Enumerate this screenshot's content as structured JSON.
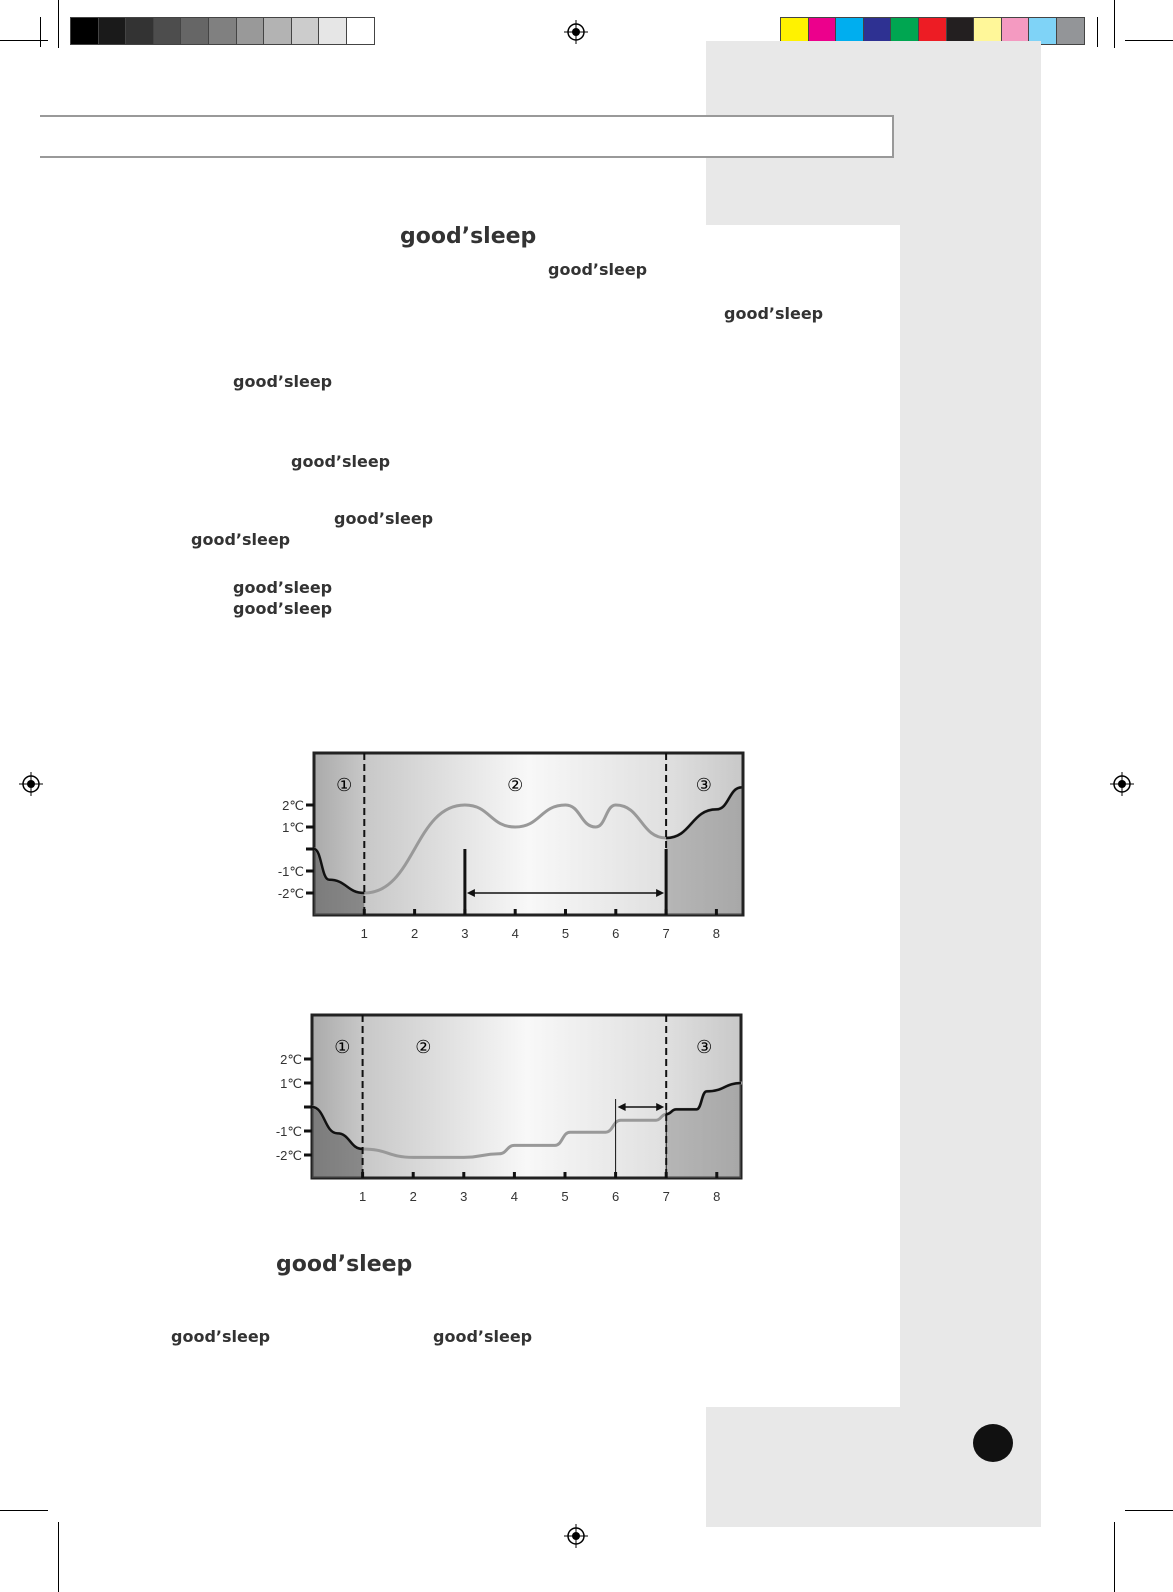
{
  "colors": {
    "grayscale": [
      "#000000",
      "#1a1a1a",
      "#333333",
      "#4d4d4d",
      "#666666",
      "#808080",
      "#999999",
      "#b3b3b3",
      "#cccccc",
      "#e6e6e6",
      "#ffffff"
    ],
    "process": [
      "#fff200",
      "#ec008c",
      "#00aeef",
      "#2e3192",
      "#00a651",
      "#ed1c24",
      "#231f20",
      "#fff799",
      "#f49ac1",
      "#7fd3f7",
      "#939598"
    ],
    "sidebar": "#e8e8e8"
  },
  "text": {
    "heading1": "good’sleep",
    "heading2": "good’sleep",
    "inline": [
      "good’sleep",
      "good’sleep",
      "good’sleep",
      "good’sleep",
      "good’sleep",
      "good’sleep",
      "good’sleep",
      "good’sleep",
      "good’sleep",
      "good’sleep"
    ]
  },
  "chart_data": [
    {
      "type": "line",
      "x_ticks": [
        "1",
        "2",
        "3",
        "4",
        "5",
        "6",
        "7",
        "8"
      ],
      "y_ticks": [
        "2℃",
        "1℃",
        "-1℃",
        "-2℃"
      ],
      "zones": [
        "①",
        "②",
        "③"
      ],
      "zone_bounds": [
        1,
        7
      ],
      "range_arrow": [
        3,
        7
      ],
      "xlim": [
        0,
        8.5
      ],
      "ylim": [
        -3,
        3.5
      ],
      "points": [
        [
          0,
          0
        ],
        [
          0.3,
          -1.4
        ],
        [
          1,
          -2
        ],
        [
          3,
          2
        ],
        [
          4,
          1
        ],
        [
          5,
          2
        ],
        [
          5.6,
          1
        ],
        [
          6,
          2
        ],
        [
          7,
          0.5
        ],
        [
          8,
          1.8
        ],
        [
          8.5,
          2.8
        ]
      ]
    },
    {
      "type": "line",
      "x_ticks": [
        "1",
        "2",
        "3",
        "4",
        "5",
        "6",
        "7",
        "8"
      ],
      "y_ticks": [
        "2℃",
        "1℃",
        "-1℃",
        "-2℃"
      ],
      "zones": [
        "①",
        "②",
        "③"
      ],
      "zone_bounds": [
        1,
        7
      ],
      "range_arrow": [
        6,
        7
      ],
      "xlim": [
        0,
        8.5
      ],
      "ylim": [
        -3,
        3
      ],
      "points": [
        [
          0,
          0
        ],
        [
          0.5,
          -1.1
        ],
        [
          1,
          -1.75
        ],
        [
          2,
          -2.1
        ],
        [
          3,
          -2.1
        ],
        [
          3.7,
          -1.95
        ],
        [
          4,
          -1.6
        ],
        [
          4.8,
          -1.6
        ],
        [
          5.1,
          -1.05
        ],
        [
          5.8,
          -1.05
        ],
        [
          6.1,
          -0.55
        ],
        [
          6.8,
          -0.55
        ],
        [
          7,
          -0.3
        ],
        [
          7.2,
          -0.1
        ],
        [
          7.6,
          -0.1
        ],
        [
          7.8,
          0.65
        ],
        [
          8.5,
          1
        ]
      ]
    }
  ]
}
